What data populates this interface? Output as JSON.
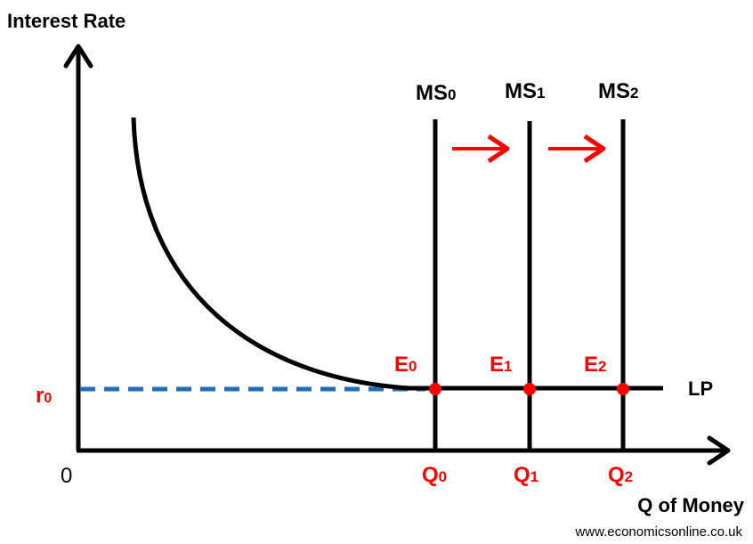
{
  "chart_data": {
    "type": "line",
    "title": "",
    "ylabel": "Interest Rate",
    "xlabel": "Q of Money",
    "origin_label": "0",
    "curves": [
      {
        "name": "LP",
        "label": "LP",
        "description": "liquidity preference curve, becomes horizontal at r0"
      }
    ],
    "money_supply": [
      {
        "name": "MS",
        "sub": "0",
        "x_label": "Q",
        "x_sub": "0",
        "equilibrium": "E",
        "eq_sub": "0"
      },
      {
        "name": "MS",
        "sub": "1",
        "x_label": "Q",
        "x_sub": "1",
        "equilibrium": "E",
        "eq_sub": "1"
      },
      {
        "name": "MS",
        "sub": "2",
        "x_label": "Q",
        "x_sub": "2",
        "equilibrium": "E",
        "eq_sub": "2"
      }
    ],
    "rate_label": "r",
    "rate_sub": "0",
    "shift_arrows": 2
  },
  "footer": {
    "source": "www.economicsonline.co.uk"
  },
  "colors": {
    "axis": "#000000",
    "highlight": "#ff0000",
    "dashed": "#1f6fb5"
  }
}
